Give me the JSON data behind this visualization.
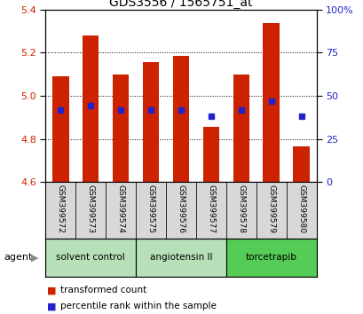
{
  "title": "GDS3556 / 1565751_at",
  "samples": [
    "GSM399572",
    "GSM399573",
    "GSM399574",
    "GSM399575",
    "GSM399576",
    "GSM399577",
    "GSM399578",
    "GSM399579",
    "GSM399580"
  ],
  "bar_values": [
    5.09,
    5.28,
    5.1,
    5.155,
    5.185,
    4.855,
    5.1,
    5.335,
    4.765
  ],
  "percentile_left_values": [
    4.935,
    4.955,
    4.935,
    4.935,
    4.935,
    4.905,
    4.935,
    4.975,
    4.905
  ],
  "baseline": 4.6,
  "ylim_left": [
    4.6,
    5.4
  ],
  "ylim_right": [
    0,
    100
  ],
  "yticks_left": [
    4.6,
    4.8,
    5.0,
    5.2,
    5.4
  ],
  "yticks_right": [
    0,
    25,
    50,
    75,
    100
  ],
  "bar_color": "#cc2200",
  "percentile_color": "#2222cc",
  "bar_width": 0.55,
  "groups": [
    {
      "label": "solvent control",
      "start": 0,
      "end": 2,
      "color": "#b8e0b8"
    },
    {
      "label": "angiotensin II",
      "start": 3,
      "end": 5,
      "color": "#b8e0b8"
    },
    {
      "label": "torcetrapib",
      "start": 6,
      "end": 8,
      "color": "#55cc55"
    }
  ],
  "agent_label": "agent",
  "legend_bar_label": "transformed count",
  "legend_pct_label": "percentile rank within the sample",
  "background_color": "#ffffff",
  "plot_bg_color": "#ffffff",
  "tick_label_color_left": "#cc2200",
  "tick_label_color_right": "#2222cc"
}
